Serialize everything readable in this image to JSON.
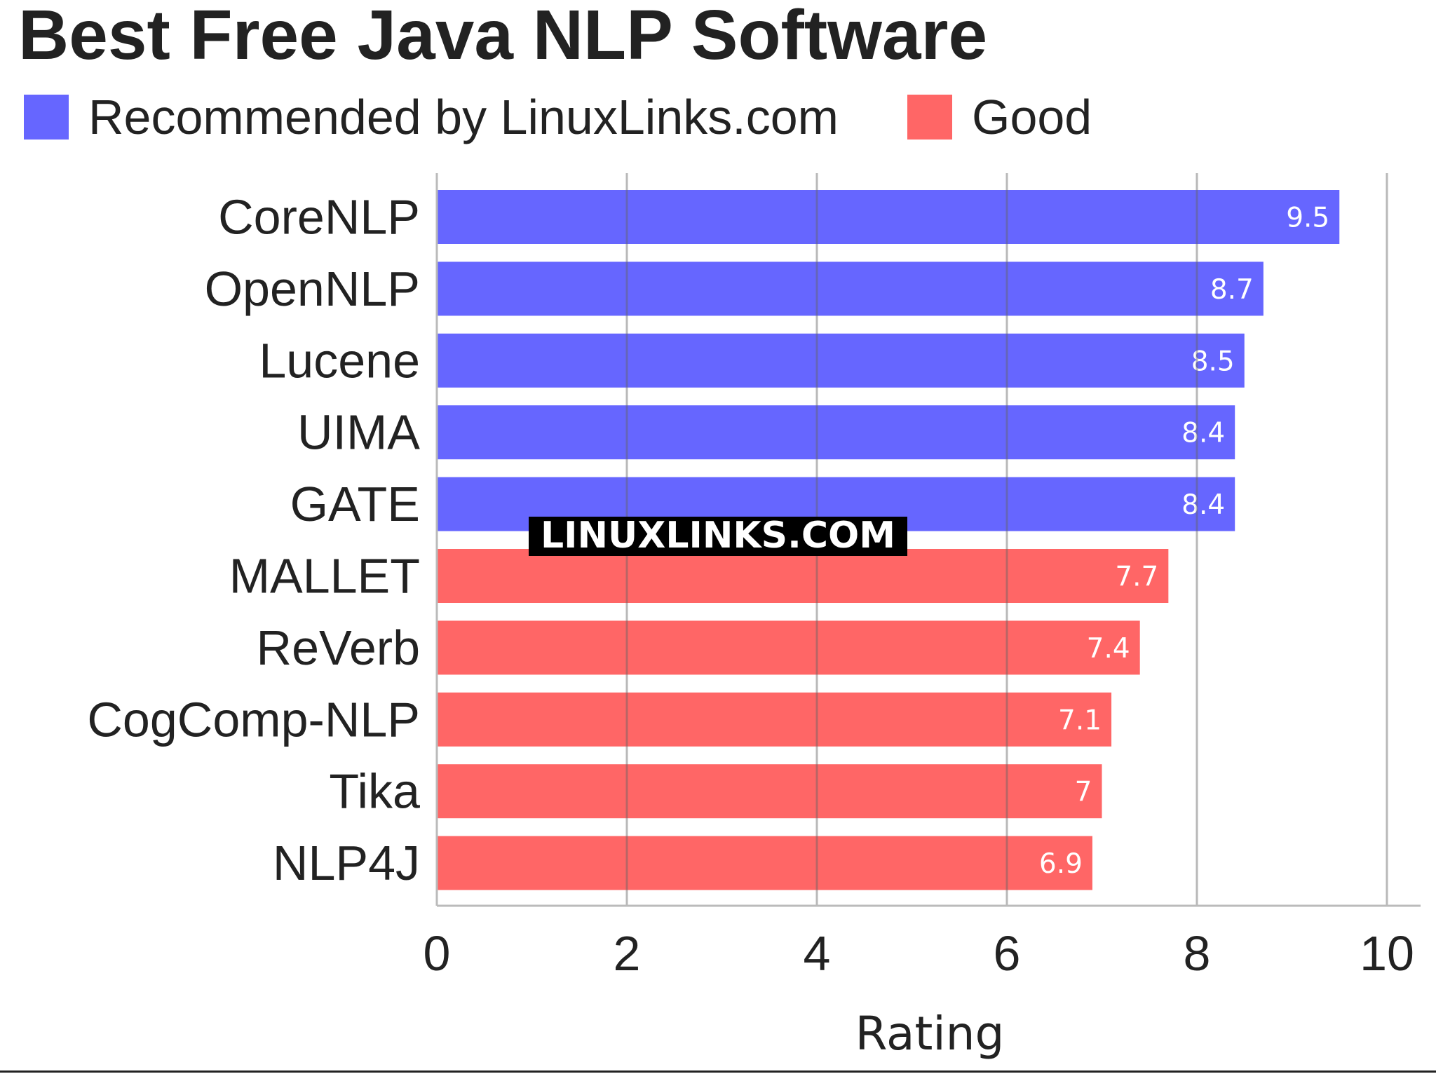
{
  "chart_data": {
    "type": "bar",
    "orientation": "horizontal",
    "title": "Best Free Java NLP Software",
    "xlabel": "Rating",
    "ylabel": "",
    "xlim": [
      0,
      10
    ],
    "xticks": [
      0,
      2,
      4,
      6,
      8,
      10
    ],
    "grid": true,
    "legend_position": "top-left",
    "categories": [
      "CoreNLP",
      "OpenNLP",
      "Lucene",
      "UIMA",
      "GATE",
      "MALLET",
      "ReVerb",
      "CogComp-NLP",
      "Tika",
      "NLP4J"
    ],
    "values": [
      9.5,
      8.7,
      8.5,
      8.4,
      8.4,
      7.7,
      7.4,
      7.1,
      7,
      6.9
    ],
    "value_labels": [
      "9.5",
      "8.7",
      "8.5",
      "8.4",
      "8.4",
      "7.7",
      "7.4",
      "7.1",
      "7",
      "6.9"
    ],
    "groups": [
      "recommended",
      "recommended",
      "recommended",
      "recommended",
      "recommended",
      "good",
      "good",
      "good",
      "good",
      "good"
    ],
    "legend": [
      {
        "key": "recommended",
        "label": "Recommended by LinuxLinks.com",
        "color": "#6666ff"
      },
      {
        "key": "good",
        "label": "Good",
        "color": "#ff6666"
      }
    ],
    "watermark": "LINUXLINKS.COM"
  }
}
